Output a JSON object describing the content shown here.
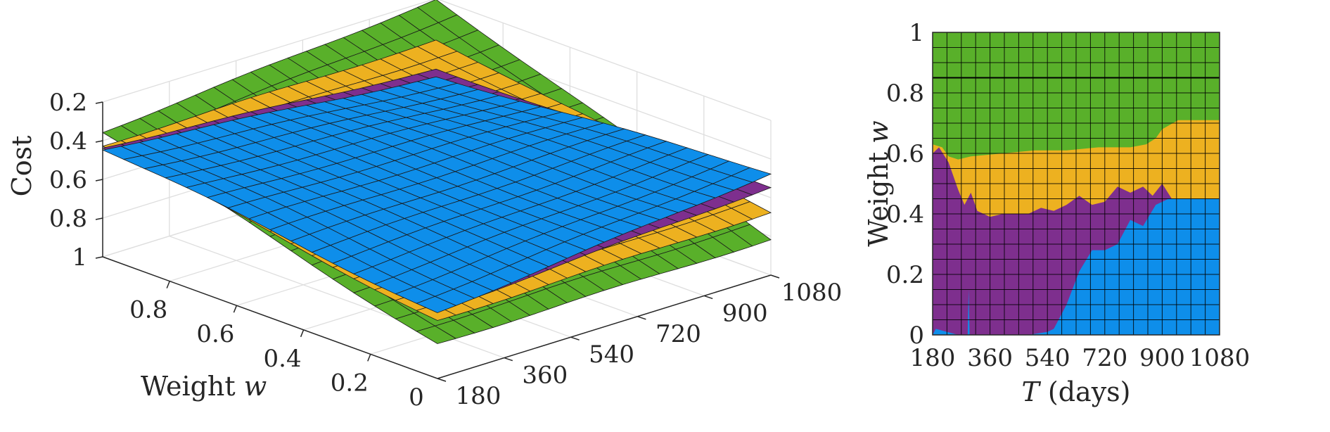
{
  "colors": {
    "green": "#59B02A",
    "yellow": "#EDB120",
    "blue": "#0E8EEA",
    "purple": "#7E2F8E",
    "grid": "#DEDEDE",
    "mesh_line": "#1A1A1A",
    "axis": "#262626"
  },
  "chart_data": [
    {
      "type": "surface",
      "panel": "left",
      "xlabel": "Weight w",
      "ylabel": "",
      "zlabel": "Cost",
      "x_ticks": [
        "0.2",
        "0.4",
        "0.6",
        "0.8"
      ],
      "y_ticks": [
        "180",
        "360",
        "540",
        "720",
        "900",
        "1080"
      ],
      "y_tick_values": [
        180,
        360,
        540,
        720,
        900,
        1080
      ],
      "x_corner_label": "0",
      "z_ticks": [
        "0.2",
        "0.4",
        "0.6",
        "0.8",
        "1"
      ],
      "z_tick_values": [
        0.2,
        0.4,
        0.6,
        0.8,
        1.0
      ],
      "xlim": [
        0,
        1
      ],
      "ylim": [
        180,
        1080
      ],
      "zlim": [
        0.2,
        1.0
      ],
      "z_direction": "reverse",
      "grid": true,
      "series": [
        {
          "color": "green",
          "cost_at_w0_T180": 0.82,
          "cost_at_w0_T1080": 0.81,
          "cost_at_w1_T180": 0.35,
          "cost_at_w1_T1080": 0.2
        },
        {
          "color": "yellow",
          "cost_at_w0_T180": 0.7,
          "cost_at_w0_T1080": 0.67,
          "cost_at_w1_T180": 0.42,
          "cost_at_w1_T1080": 0.41
        },
        {
          "color": "purple",
          "cost_at_w0_T180": 0.65,
          "cost_at_w0_T1080": 0.54,
          "cost_at_w1_T180": 0.43,
          "cost_at_w1_T1080": 0.56
        },
        {
          "color": "blue",
          "cost_at_w0_T180": 0.66,
          "cost_at_w0_T1080": 0.47,
          "cost_at_w1_T180": 0.44,
          "cost_at_w1_T1080": 0.6
        }
      ]
    },
    {
      "type": "heatmap",
      "panel": "right",
      "xlabel": "T (days)",
      "ylabel": "Weight w",
      "x_ticks": [
        "180",
        "360",
        "540",
        "720",
        "900",
        "1080"
      ],
      "x_tick_values": [
        180,
        360,
        540,
        720,
        900,
        1080
      ],
      "y_ticks": [
        "0",
        "0.2",
        "0.4",
        "0.6",
        "0.8",
        "1"
      ],
      "y_tick_values": [
        0,
        0.2,
        0.4,
        0.6,
        0.8,
        1.0
      ],
      "xlim": [
        180,
        1080
      ],
      "ylim": [
        0,
        1
      ],
      "grid": true,
      "grid_rows": 20,
      "grid_cols": 20,
      "regions": [
        {
          "color": "green",
          "description_boundary": "upper",
          "lower_boundary_T": [
            180,
            210,
            230,
            260,
            300,
            400,
            500,
            600,
            700,
            800,
            850,
            880,
            900,
            950,
            1000,
            1080
          ],
          "lower_boundary_w": [
            0.63,
            0.62,
            0.59,
            0.58,
            0.59,
            0.6,
            0.61,
            0.61,
            0.62,
            0.62,
            0.63,
            0.65,
            0.68,
            0.71,
            0.71,
            0.71
          ]
        },
        {
          "color": "yellow",
          "lower_boundary_T": [
            180,
            200,
            230,
            260,
            280,
            300,
            320,
            360,
            400,
            440,
            480,
            520,
            560,
            600,
            640,
            680,
            720,
            760,
            800,
            840,
            870,
            900,
            930,
            960,
            1000,
            1080
          ],
          "lower_boundary_w": [
            0.6,
            0.62,
            0.57,
            0.48,
            0.43,
            0.47,
            0.41,
            0.39,
            0.4,
            0.4,
            0.4,
            0.42,
            0.41,
            0.43,
            0.46,
            0.43,
            0.44,
            0.49,
            0.47,
            0.49,
            0.46,
            0.5,
            0.45,
            0.45,
            0.45,
            0.45
          ]
        },
        {
          "color": "purple",
          "lower_boundary_T": [
            180,
            190,
            260,
            290,
            300,
            400,
            480,
            540,
            560,
            600,
            640,
            680,
            720,
            760,
            800,
            840,
            880,
            920,
            960,
            1000,
            1080
          ],
          "lower_boundary_w": [
            0.0,
            0.02,
            0.0,
            0.0,
            0.0,
            0.0,
            0.0,
            0.01,
            0.02,
            0.1,
            0.21,
            0.28,
            0.28,
            0.3,
            0.38,
            0.36,
            0.43,
            0.45,
            0.45,
            0.45,
            0.45
          ]
        },
        {
          "color": "blue",
          "description_boundary": "lower-right",
          "lower_boundary_T": [
            180,
            1080
          ],
          "lower_boundary_w": [
            0.0,
            0.0
          ]
        }
      ]
    }
  ]
}
